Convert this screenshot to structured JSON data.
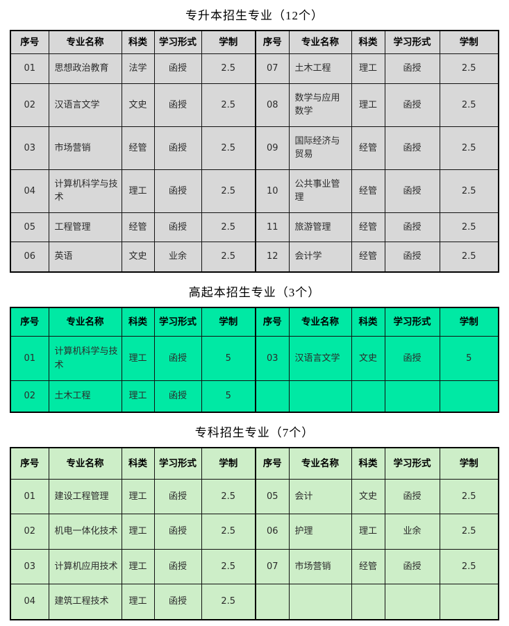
{
  "page": {
    "background": "#ffffff",
    "border_color": "#000000",
    "header_text_color": "#000000",
    "body_text_color": "#2b2b2b"
  },
  "sections": [
    {
      "id": "zsb",
      "title": "专升本招生专业（12个）",
      "theme": {
        "bg": "#d8d8d8"
      },
      "headers": [
        "序号",
        "专业名称",
        "科类",
        "学习形式",
        "学制",
        "序号",
        "专业名称",
        "科类",
        "学习形式",
        "学制"
      ],
      "rows": [
        [
          "01",
          "思想政治教育",
          "法学",
          "函授",
          "2.5",
          "07",
          "土木工程",
          "理工",
          "函授",
          "2.5"
        ],
        [
          "02",
          "汉语言文学",
          "文史",
          "函授",
          "2.5",
          "08",
          "数学与应用数学",
          "理工",
          "函授",
          "2.5"
        ],
        [
          "03",
          "市场营销",
          "经管",
          "函授",
          "2.5",
          "09",
          "国际经济与贸易",
          "经管",
          "函授",
          "2.5"
        ],
        [
          "04",
          "计算机科学与技术",
          "理工",
          "函授",
          "2.5",
          "10",
          "公共事业管理",
          "经管",
          "函授",
          "2.5"
        ],
        [
          "05",
          "工程管理",
          "经管",
          "函授",
          "2.5",
          "11",
          "旅游管理",
          "经管",
          "函授",
          "2.5"
        ],
        [
          "06",
          "英语",
          "文史",
          "业余",
          "2.5",
          "12",
          "会计学",
          "经管",
          "函授",
          "2.5"
        ]
      ]
    },
    {
      "id": "gqb",
      "title": "高起本招生专业（3个）",
      "theme": {
        "bg": "#00e9a4"
      },
      "headers": [
        "序号",
        "专业名称",
        "科类",
        "学习形式",
        "学制",
        "序号",
        "专业名称",
        "科类",
        "学习形式",
        "学制"
      ],
      "rows": [
        [
          "01",
          "计算机科学与技术",
          "理工",
          "函授",
          "5",
          "03",
          "汉语言文学",
          "文史",
          "函授",
          "5"
        ],
        [
          "02",
          "土木工程",
          "理工",
          "函授",
          "5",
          "",
          "",
          "",
          "",
          ""
        ]
      ]
    },
    {
      "id": "zk",
      "title": "专科招生专业（7个）",
      "theme": {
        "bg": "#cdeec8"
      },
      "headers": [
        "序号",
        "专业名称",
        "科类",
        "学习形式",
        "学制",
        "序号",
        "专业名称",
        "科类",
        "学习形式",
        "学制"
      ],
      "rows": [
        [
          "01",
          "建设工程管理",
          "理工",
          "函授",
          "2.5",
          "05",
          "会计",
          "文史",
          "函授",
          "2.5"
        ],
        [
          "02",
          "机电一体化技术",
          "理工",
          "函授",
          "2.5",
          "06",
          "护理",
          "理工",
          "业余",
          "2.5"
        ],
        [
          "03",
          "计算机应用技术",
          "理工",
          "函授",
          "2.5",
          "07",
          "市场营销",
          "经管",
          "函授",
          "2.5"
        ],
        [
          "04",
          "建筑工程技术",
          "理工",
          "函授",
          "2.5",
          "",
          "",
          "",
          "",
          ""
        ]
      ]
    }
  ]
}
